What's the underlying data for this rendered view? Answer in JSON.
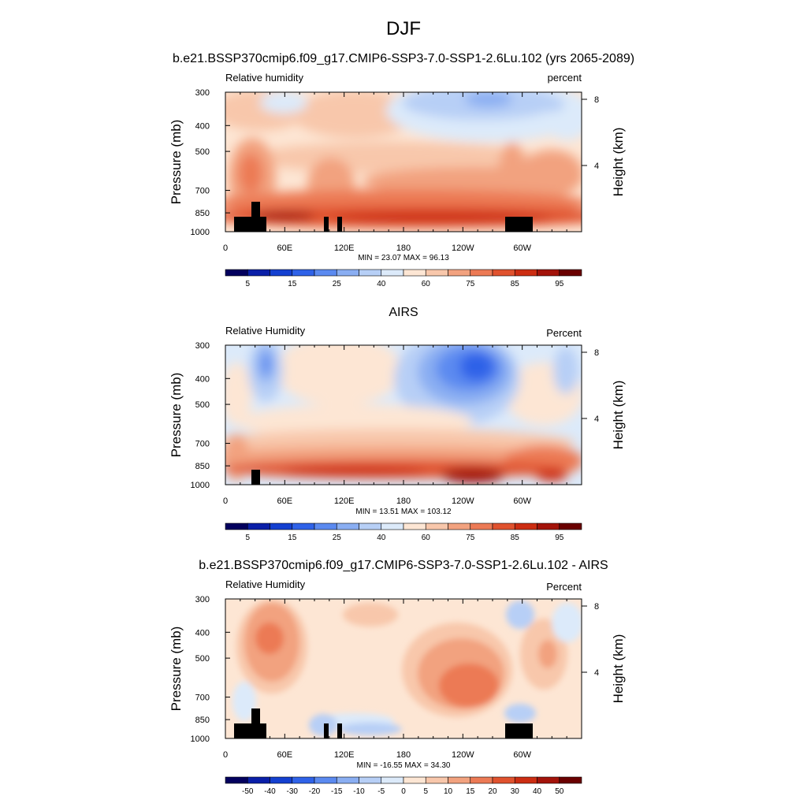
{
  "figure": {
    "title": "DJF"
  },
  "chart_data": [
    {
      "type": "heatmap",
      "title": "b.e21.BSSP370cmip6.f09_g17.CMIP6-SSP3-7.0-SSP1-2.6Lu.102 (yrs 2065-2089)",
      "left_label": "Relative humidity",
      "right_label": "percent",
      "ylabel": "Pressure (mb)",
      "ylabel_right": "Height (km)",
      "x_ticks": [
        "0",
        "60E",
        "120E",
        "180",
        "120W",
        "60W"
      ],
      "y_ticks": [
        "300",
        "400",
        "500",
        "700",
        "850",
        "1000"
      ],
      "y2_ticks": [
        "8",
        "4"
      ],
      "stats": "MIN =  23.07  MAX =  96.13",
      "colorbar_labels": [
        "5",
        "15",
        "25",
        "40",
        "60",
        "75",
        "85",
        "95"
      ],
      "colorbar_colors": [
        "#03005e",
        "#0a1fa8",
        "#1440d0",
        "#2f62e8",
        "#5b8af0",
        "#8aaef2",
        "#b7cff6",
        "#dceafa",
        "#fde6d4",
        "#f8c7ab",
        "#f2a27f",
        "#ec7a55",
        "#e0522e",
        "#cc2d12",
        "#a3130a",
        "#6a0000"
      ]
    },
    {
      "type": "heatmap",
      "title": "AIRS",
      "left_label": "Relative Humidity",
      "right_label": "Percent",
      "ylabel": "Pressure (mb)",
      "ylabel_right": "Height (km)",
      "x_ticks": [
        "0",
        "60E",
        "120E",
        "180",
        "120W",
        "60W"
      ],
      "y_ticks": [
        "300",
        "400",
        "500",
        "700",
        "850",
        "1000"
      ],
      "y2_ticks": [
        "8",
        "4"
      ],
      "stats": "MIN =  13.51  MAX = 103.12",
      "colorbar_labels": [
        "5",
        "15",
        "25",
        "40",
        "60",
        "75",
        "85",
        "95"
      ],
      "colorbar_colors": [
        "#03005e",
        "#0a1fa8",
        "#1440d0",
        "#2f62e8",
        "#5b8af0",
        "#8aaef2",
        "#b7cff6",
        "#dceafa",
        "#fde6d4",
        "#f8c7ab",
        "#f2a27f",
        "#ec7a55",
        "#e0522e",
        "#cc2d12",
        "#a3130a",
        "#6a0000"
      ]
    },
    {
      "type": "heatmap",
      "title": "b.e21.BSSP370cmip6.f09_g17.CMIP6-SSP3-7.0-SSP1-2.6Lu.102 - AIRS",
      "left_label": "Relative Humidity",
      "right_label": "Percent",
      "ylabel": "Pressure (mb)",
      "ylabel_right": "Height (km)",
      "x_ticks": [
        "0",
        "60E",
        "120E",
        "180",
        "120W",
        "60W"
      ],
      "y_ticks": [
        "300",
        "400",
        "500",
        "700",
        "850",
        "1000"
      ],
      "y2_ticks": [
        "8",
        "4"
      ],
      "stats": "MIN = -16.55  MAX =  34.30",
      "colorbar_labels": [
        "-50",
        "-40",
        "-30",
        "-20",
        "-15",
        "-10",
        "-5",
        "0",
        "5",
        "10",
        "15",
        "20",
        "30",
        "40",
        "50"
      ],
      "colorbar_colors": [
        "#03005e",
        "#0a1fa8",
        "#1440d0",
        "#2f62e8",
        "#5b8af0",
        "#8aaef2",
        "#b7cff6",
        "#dceafa",
        "#fde6d4",
        "#f8c7ab",
        "#f2a27f",
        "#ec7a55",
        "#e0522e",
        "#cc2d12",
        "#a3130a",
        "#6a0000"
      ]
    }
  ]
}
